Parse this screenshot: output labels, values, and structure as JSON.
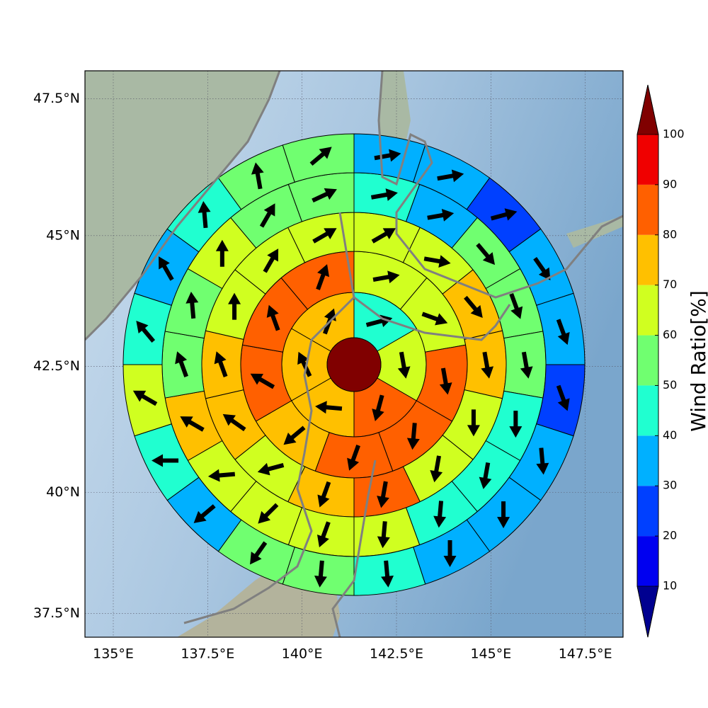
{
  "chart_data": {
    "type": "polar_sectors",
    "projection": "mercator",
    "xlim": [
      134.25,
      148.5
    ],
    "ylim": [
      37,
      48
    ],
    "xticks": [
      {
        "value": 135,
        "label": "135°E"
      },
      {
        "value": 137.5,
        "label": "137.5°E"
      },
      {
        "value": 140,
        "label": "140°E"
      },
      {
        "value": 142.5,
        "label": "142.5°E"
      },
      {
        "value": 145,
        "label": "145°E"
      },
      {
        "value": 147.5,
        "label": "147.5°E"
      }
    ],
    "yticks": [
      {
        "value": 37.5,
        "label": "37.5°N"
      },
      {
        "value": 40,
        "label": "40°N"
      },
      {
        "value": 42.5,
        "label": "42.5°N"
      },
      {
        "value": 45,
        "label": "45°N"
      },
      {
        "value": 47.5,
        "label": "47.5°N"
      }
    ],
    "grid": true,
    "center": {
      "value": 105
    },
    "rings": [
      {
        "values": [
          45,
          65,
          85,
          75,
          75,
          75
        ],
        "directions": [
          75,
          170,
          195,
          275,
          335,
          20
        ]
      },
      {
        "values": [
          65,
          65,
          85,
          85,
          85,
          75,
          85,
          85,
          85
        ],
        "directions": [
          80,
          110,
          170,
          185,
          200,
          230,
          300,
          340,
          20
        ]
      },
      {
        "values": [
          65,
          65,
          75,
          75,
          65,
          65,
          85,
          75,
          65,
          75,
          75,
          65,
          65,
          65
        ],
        "directions": [
          60,
          100,
          140,
          170,
          180,
          190,
          190,
          200,
          255,
          305,
          340,
          0,
          30,
          60
        ]
      },
      {
        "values": [
          45,
          35,
          55,
          55,
          55,
          45,
          45,
          45,
          65,
          65,
          65,
          65,
          75,
          55,
          55,
          65,
          55,
          55
        ],
        "directions": [
          80,
          80,
          140,
          160,
          170,
          180,
          190,
          185,
          185,
          200,
          225,
          265,
          300,
          340,
          355,
          0,
          30,
          65
        ]
      },
      {
        "values": [
          35,
          35,
          25,
          35,
          35,
          25,
          35,
          35,
          35,
          45,
          55,
          55,
          35,
          45,
          65,
          45,
          35,
          45,
          55,
          55
        ],
        "directions": [
          80,
          80,
          75,
          145,
          160,
          160,
          175,
          180,
          180,
          175,
          185,
          215,
          230,
          270,
          300,
          320,
          330,
          355,
          350,
          50
        ]
      }
    ],
    "colorbar": {
      "label": "Wind Ratio[%]",
      "ticks": [
        10,
        20,
        30,
        40,
        50,
        60,
        70,
        80,
        90,
        100
      ],
      "colors": [
        "#0000f0",
        "#0040ff",
        "#00b0ff",
        "#20ffd0",
        "#70ff70",
        "#d0ff20",
        "#ffc000",
        "#ff6000",
        "#f00000"
      ],
      "under_color": "#000090",
      "over_color": "#800000"
    }
  }
}
